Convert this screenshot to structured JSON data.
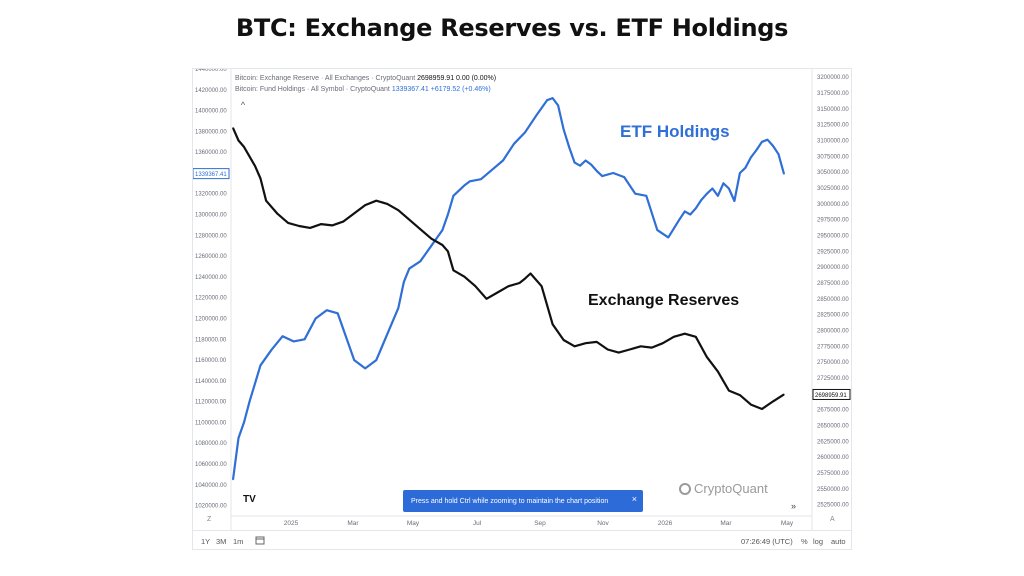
{
  "page": {
    "title": "BTC: Exchange Reserves vs. ETF Holdings"
  },
  "legend": {
    "reserve_label": "Bitcoin: Exchange Reserve · All Exchanges · CryptoQuant",
    "reserve_values": "2698959.91  0.00 (0.00%)",
    "etf_label": "Bitcoin: Fund Holdings · All Symbol · CryptoQuant",
    "etf_values": "1339367.41  +6179.52 (+0.46%)"
  },
  "icons": {
    "collapse": "chevron-up-icon",
    "logo": "cryptoquant-logo",
    "tradingview": "tradingview-logo",
    "calendar": "calendar-icon",
    "scroll": "double-chevron-right-icon"
  },
  "tooltip": {
    "text": "Press and hold Ctrl while zooming to maintain the chart position",
    "close": "×"
  },
  "watermark": "CryptoQuant",
  "tv_logo_text": "TV",
  "toolbar": {
    "range_1y": "1Y",
    "range_3m": "3M",
    "range_1m": "1m",
    "time": "07:26:49 (UTC)",
    "percent": "%",
    "log": "log",
    "auto": "auto",
    "z": "Z",
    "a": "A",
    "scroll": "»",
    "collapse": "^"
  },
  "colors": {
    "reserves": "#111111",
    "etf": "#2f6fd6",
    "etf_label": "#2f6fd6",
    "badge_blue": "#2f6fd6"
  },
  "chart_data": {
    "type": "line",
    "title": "BTC: Exchange Reserves vs. ETF Holdings",
    "x_ticks": [
      "2025",
      "Mar",
      "May",
      "Jul",
      "Sep",
      "Nov",
      "2026",
      "Mar",
      "May"
    ],
    "left_axis": {
      "series": "ETF Holdings",
      "ylim": [
        1010000,
        1440000
      ],
      "ticks": [
        "1440000.00",
        "1420000.00",
        "1400000.00",
        "1380000.00",
        "1360000.00",
        "1340000.00",
        "1320000.00",
        "1300000.00",
        "1280000.00",
        "1260000.00",
        "1240000.00",
        "1220000.00",
        "1200000.00",
        "1180000.00",
        "1160000.00",
        "1140000.00",
        "1120000.00",
        "1100000.00",
        "1080000.00",
        "1060000.00",
        "1040000.00",
        "1020000.00"
      ],
      "last_value_label": "1339367.41"
    },
    "right_axis": {
      "series": "Exchange Reserves",
      "ylim": [
        2507000,
        3213000
      ],
      "ticks": [
        "3200000.00",
        "3175000.00",
        "3150000.00",
        "3125000.00",
        "3100000.00",
        "3075000.00",
        "3050000.00",
        "3025000.00",
        "3000000.00",
        "2975000.00",
        "2950000.00",
        "2925000.00",
        "2900000.00",
        "2875000.00",
        "2850000.00",
        "2825000.00",
        "2800000.00",
        "2775000.00",
        "2750000.00",
        "2725000.00",
        "2700000.00",
        "2675000.00",
        "2650000.00",
        "2625000.00",
        "2600000.00",
        "2575000.00",
        "2550000.00",
        "2525000.00"
      ],
      "last_value_label": "2698959.91"
    },
    "series": [
      {
        "name": "ETF Holdings",
        "axis": "left",
        "color": "#2f6fd6",
        "x": [
          0,
          0.01,
          0.02,
          0.03,
          0.05,
          0.07,
          0.09,
          0.11,
          0.13,
          0.15,
          0.17,
          0.19,
          0.2,
          0.22,
          0.24,
          0.26,
          0.28,
          0.3,
          0.31,
          0.32,
          0.34,
          0.36,
          0.38,
          0.39,
          0.4,
          0.42,
          0.43,
          0.45,
          0.47,
          0.49,
          0.51,
          0.53,
          0.55,
          0.57,
          0.58,
          0.59,
          0.6,
          0.61,
          0.62,
          0.63,
          0.64,
          0.65,
          0.66,
          0.67,
          0.69,
          0.71,
          0.73,
          0.75,
          0.77,
          0.79,
          0.81,
          0.82,
          0.83,
          0.84,
          0.85,
          0.86,
          0.87,
          0.88,
          0.89,
          0.9,
          0.91,
          0.92,
          0.93,
          0.94,
          0.95,
          0.96,
          0.97,
          0.98,
          0.99,
          1.0
        ],
        "values": [
          1045000,
          1085000,
          1100000,
          1120000,
          1155000,
          1170000,
          1183000,
          1178000,
          1180000,
          1200000,
          1208000,
          1205000,
          1190000,
          1160000,
          1152000,
          1160000,
          1185000,
          1210000,
          1235000,
          1248000,
          1255000,
          1270000,
          1285000,
          1300000,
          1318000,
          1328000,
          1332000,
          1334000,
          1343000,
          1352000,
          1368000,
          1379000,
          1395000,
          1410000,
          1412000,
          1405000,
          1382000,
          1365000,
          1350000,
          1347000,
          1352000,
          1348000,
          1342000,
          1337000,
          1340000,
          1336000,
          1320000,
          1318000,
          1285000,
          1278000,
          1295000,
          1303000,
          1300000,
          1306000,
          1314000,
          1320000,
          1325000,
          1318000,
          1330000,
          1325000,
          1313000,
          1340000,
          1345000,
          1355000,
          1362000,
          1370000,
          1372000,
          1366000,
          1358000,
          1339000
        ]
      },
      {
        "name": "Exchange Reserves",
        "axis": "right",
        "color": "#111111",
        "x": [
          0,
          0.01,
          0.02,
          0.03,
          0.04,
          0.05,
          0.06,
          0.08,
          0.1,
          0.12,
          0.14,
          0.16,
          0.18,
          0.2,
          0.22,
          0.24,
          0.26,
          0.28,
          0.3,
          0.32,
          0.34,
          0.36,
          0.38,
          0.39,
          0.4,
          0.42,
          0.44,
          0.46,
          0.48,
          0.5,
          0.52,
          0.53,
          0.54,
          0.56,
          0.58,
          0.6,
          0.62,
          0.64,
          0.66,
          0.68,
          0.7,
          0.72,
          0.74,
          0.76,
          0.78,
          0.8,
          0.82,
          0.84,
          0.86,
          0.88,
          0.9,
          0.92,
          0.94,
          0.96,
          0.98,
          1.0
        ],
        "values": [
          3120000,
          3100000,
          3090000,
          3075000,
          3060000,
          3040000,
          3005000,
          2985000,
          2970000,
          2965000,
          2962000,
          2968000,
          2966000,
          2972000,
          2985000,
          2998000,
          3005000,
          3000000,
          2990000,
          2975000,
          2960000,
          2945000,
          2935000,
          2925000,
          2895000,
          2885000,
          2870000,
          2850000,
          2860000,
          2870000,
          2875000,
          2882000,
          2890000,
          2870000,
          2810000,
          2785000,
          2775000,
          2780000,
          2782000,
          2770000,
          2765000,
          2770000,
          2775000,
          2773000,
          2780000,
          2790000,
          2795000,
          2790000,
          2758000,
          2735000,
          2705000,
          2698000,
          2683000,
          2676000,
          2688000,
          2699000
        ]
      }
    ],
    "annotations": [
      "ETF Holdings",
      "Exchange Reserves"
    ],
    "grid": false,
    "legend": "top-left"
  }
}
